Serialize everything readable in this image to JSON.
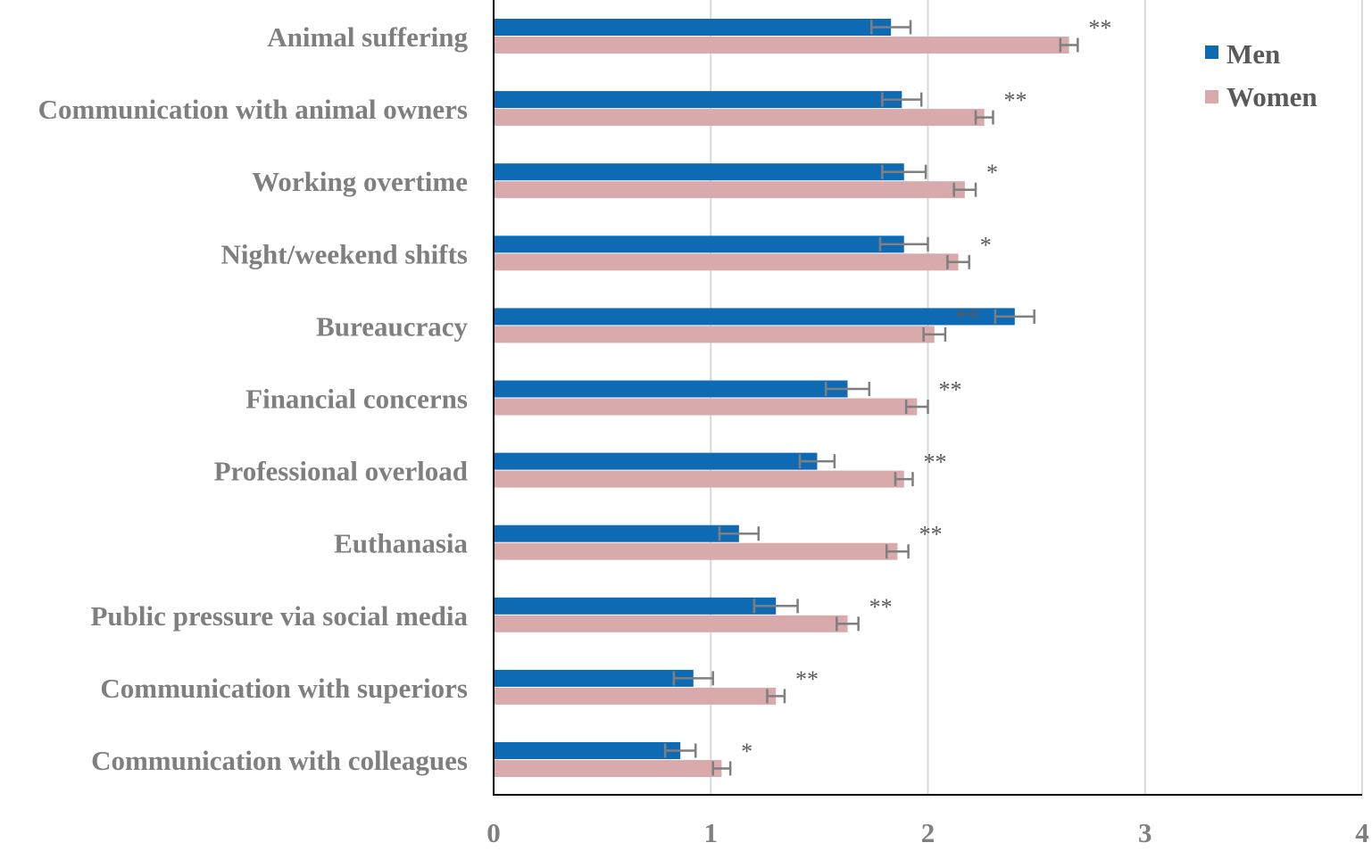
{
  "chart_data": {
    "type": "bar",
    "orientation": "horizontal",
    "title": "",
    "xlabel": "",
    "ylabel": "",
    "xlim": [
      0,
      4
    ],
    "xticks": [
      "0",
      "1",
      "2",
      "3",
      "4"
    ],
    "grid": true,
    "legend_position": "top-right",
    "categories": [
      "Animal suffering",
      "Communication with animal owners",
      "Working overtime",
      "Night/weekend shifts",
      "Bureaucracy",
      "Financial concerns",
      "Professional overload",
      "Euthanasia",
      "Public pressure via social media",
      "Communication with superiors",
      "Communication with colleagues"
    ],
    "series": [
      {
        "name": "Men",
        "color": "#0f6ab4",
        "values": [
          1.83,
          1.88,
          1.89,
          1.89,
          2.4,
          1.63,
          1.49,
          1.13,
          1.3,
          0.92,
          0.86
        ],
        "errors": [
          0.09,
          0.09,
          0.1,
          0.11,
          0.09,
          0.1,
          0.08,
          0.09,
          0.1,
          0.09,
          0.07
        ]
      },
      {
        "name": "Women",
        "color": "#d9aaab",
        "values": [
          2.65,
          2.26,
          2.17,
          2.14,
          2.03,
          1.95,
          1.89,
          1.86,
          1.63,
          1.3,
          1.05
        ],
        "errors": [
          0.04,
          0.04,
          0.05,
          0.05,
          0.05,
          0.05,
          0.04,
          0.05,
          0.05,
          0.04,
          0.04
        ]
      }
    ],
    "significance": [
      "**",
      "**",
      "*",
      "*",
      "**",
      "**",
      "**",
      "**",
      "**",
      "**",
      "*"
    ]
  }
}
